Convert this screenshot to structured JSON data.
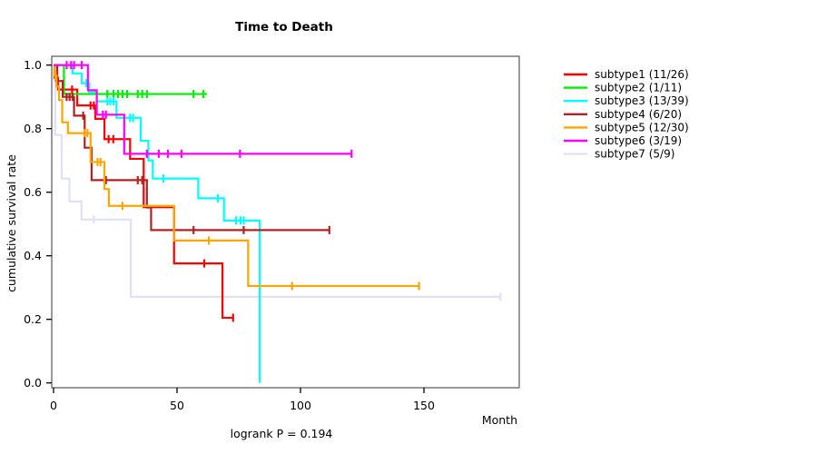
{
  "title": "Time to Death",
  "annotation": "logrank P = 0.194",
  "axes": {
    "x_label": "Month",
    "y_label": "cumulative survival rate",
    "x_tick_labels": [
      "0",
      "50",
      "100",
      "150"
    ],
    "x_tick_values": [
      0,
      50,
      100,
      150
    ],
    "y_tick_labels": [
      "0.0",
      "0.2",
      "0.4",
      "0.6",
      "0.8",
      "1.0"
    ],
    "y_tick_values": [
      0.0,
      0.2,
      0.4,
      0.6,
      0.8,
      1.0
    ]
  },
  "chart_data": {
    "type": "line",
    "variant": "kaplan-meier-step",
    "title": "Time to Death",
    "xlabel": "Month",
    "ylabel": "cumulative survival rate",
    "xlim": [
      0,
      188
    ],
    "ylim": [
      0.0,
      1.0
    ],
    "grid": false,
    "legend_position": "right-outside",
    "annotation": "logrank P = 0.194",
    "series": [
      {
        "name": "subtype1 (11/26)",
        "color": "#FF0000",
        "steps": [
          [
            0.4,
            0.96
          ],
          [
            1.8,
            0.923
          ],
          [
            9.6,
            0.873
          ],
          [
            16.9,
            0.831
          ],
          [
            20.6,
            0.767
          ],
          [
            31.0,
            0.705
          ],
          [
            36.5,
            0.553
          ],
          [
            48.8,
            0.376
          ],
          [
            68.4,
            0.205
          ]
        ],
        "end": 72.7,
        "censor_ticks": [
          1.0,
          7.5,
          15.0,
          16.3,
          22.3,
          24.2,
          61.0,
          72.7
        ]
      },
      {
        "name": "subtype2 (1/11)",
        "color": "#00EE00",
        "steps": [
          [
            4.2,
            0.909
          ]
        ],
        "end": 62.2,
        "censor_ticks": [
          21.8,
          24.3,
          26.1,
          27.9,
          29.8,
          34.1,
          35.9,
          37.8,
          56.7,
          60.7
        ]
      },
      {
        "name": "subtype3 (13/39)",
        "color": "#00FFFF",
        "steps": [
          [
            7.7,
            0.974
          ],
          [
            11.4,
            0.943
          ],
          [
            14.4,
            0.914
          ],
          [
            17.5,
            0.886
          ],
          [
            25.5,
            0.834
          ],
          [
            35.3,
            0.762
          ],
          [
            38.4,
            0.7
          ],
          [
            40.2,
            0.643
          ],
          [
            58.6,
            0.581
          ],
          [
            69.0,
            0.511
          ],
          [
            83.5,
            0.0
          ]
        ],
        "end": 83.5,
        "censor_ticks": [
          13.2,
          21.8,
          23.0,
          24.3,
          31.0,
          32.2,
          44.5,
          66.5,
          73.9,
          75.7,
          77.0
        ]
      },
      {
        "name": "subtype4 (6/20)",
        "color": "#B22222",
        "steps": [
          [
            1.5,
            0.95
          ],
          [
            3.7,
            0.9
          ],
          [
            8.3,
            0.841
          ],
          [
            12.6,
            0.74
          ],
          [
            15.4,
            0.638
          ],
          [
            37.8,
            0.552
          ],
          [
            39.5,
            0.481
          ]
        ],
        "end": 111.7,
        "censor_ticks": [
          5.3,
          6.5,
          7.7,
          12.0,
          21.2,
          34.1,
          35.9,
          56.7,
          77.0,
          111.7
        ]
      },
      {
        "name": "subtype5 (12/30)",
        "color": "#FFA500",
        "steps": [
          [
            0.3,
            0.967
          ],
          [
            1.2,
            0.933
          ],
          [
            2.2,
            0.89
          ],
          [
            3.5,
            0.82
          ],
          [
            5.8,
            0.786
          ],
          [
            15.0,
            0.695
          ],
          [
            20.6,
            0.61
          ],
          [
            22.4,
            0.557
          ],
          [
            48.8,
            0.448
          ],
          [
            78.8,
            0.305
          ]
        ],
        "end": 148.0,
        "censor_ticks": [
          0.8,
          12.5,
          13.7,
          17.8,
          19.0,
          27.9,
          62.9,
          96.6,
          148.0
        ]
      },
      {
        "name": "subtype6 (3/19)",
        "color": "#FF00FF",
        "steps": [
          [
            13.9,
            0.921
          ],
          [
            17.5,
            0.844
          ],
          [
            28.6,
            0.721
          ]
        ],
        "end": 120.7,
        "censor_ticks": [
          5.3,
          7.1,
          8.3,
          11.4,
          20.0,
          21.2,
          37.8,
          42.6,
          46.3,
          51.8,
          75.5,
          120.7
        ]
      },
      {
        "name": "subtype7 (5/9)",
        "color": "#E0E0F6",
        "steps": [
          [
            0.7,
            0.78
          ],
          [
            3.3,
            0.643
          ],
          [
            6.4,
            0.571
          ],
          [
            11.3,
            0.514
          ],
          [
            31.3,
            0.271
          ]
        ],
        "end": 181.0,
        "censor_ticks": [
          16.3,
          181.0
        ]
      }
    ]
  }
}
